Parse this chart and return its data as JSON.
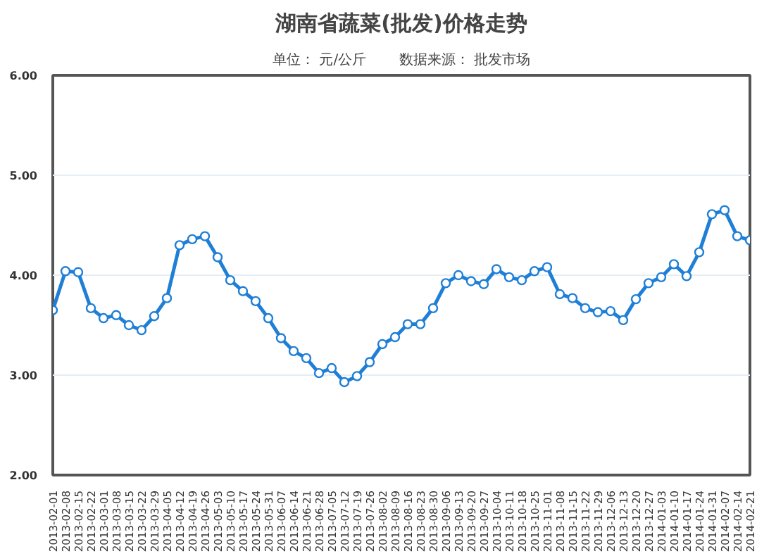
{
  "chart_data": {
    "type": "line",
    "title": "湖南省蔬菜(批发)价格走势",
    "subtitle": "单位： 元/公斤　　 数据来源： 批发市场",
    "categories": [
      "2013-02-01",
      "2013-02-08",
      "2013-02-15",
      "2013-02-22",
      "2013-03-01",
      "2013-03-08",
      "2013-03-15",
      "2013-03-22",
      "2013-03-29",
      "2013-04-05",
      "2013-04-12",
      "2013-04-19",
      "2013-04-26",
      "2013-05-03",
      "2013-05-10",
      "2013-05-17",
      "2013-05-24",
      "2013-05-31",
      "2013-06-07",
      "2013-06-14",
      "2013-06-21",
      "2013-06-28",
      "2013-07-05",
      "2013-07-12",
      "2013-07-19",
      "2013-07-26",
      "2013-08-02",
      "2013-08-09",
      "2013-08-16",
      "2013-08-23",
      "2013-08-30",
      "2013-09-06",
      "2013-09-13",
      "2013-09-20",
      "2013-09-27",
      "2013-10-04",
      "2013-10-11",
      "2013-10-18",
      "2013-10-25",
      "2013-11-01",
      "2013-11-08",
      "2013-11-15",
      "2013-11-22",
      "2013-11-29",
      "2013-12-06",
      "2013-12-13",
      "2013-12-20",
      "2013-12-27",
      "2014-01-03",
      "2014-01-10",
      "2014-01-17",
      "2014-01-24",
      "2014-01-31",
      "2014-02-07",
      "2014-02-14",
      "2014-02-21"
    ],
    "series": [
      {
        "color": "#1f7fd6",
        "values": [
          3.65,
          4.04,
          4.03,
          3.67,
          3.57,
          3.6,
          3.5,
          3.45,
          3.59,
          3.77,
          4.3,
          4.36,
          4.39,
          4.18,
          3.95,
          3.84,
          3.74,
          3.57,
          3.37,
          3.24,
          3.17,
          3.02,
          3.07,
          2.93,
          2.99,
          3.13,
          3.31,
          3.38,
          3.51,
          3.51,
          3.67,
          3.92,
          4.0,
          3.94,
          3.91,
          4.06,
          3.98,
          3.95,
          4.04,
          4.08,
          3.81,
          3.77,
          3.67,
          3.63,
          3.64,
          3.55,
          3.76,
          3.92,
          3.98,
          4.11,
          3.99,
          4.23,
          4.61,
          4.65,
          4.39,
          4.35
        ]
      }
    ],
    "ylim": [
      2,
      6
    ],
    "yticks": [
      {
        "value": 2,
        "label": "2.00"
      },
      {
        "value": 3,
        "label": "3.00"
      },
      {
        "value": 4,
        "label": "4.00"
      },
      {
        "value": 5,
        "label": "5.00"
      },
      {
        "value": 6,
        "label": "6.00"
      }
    ],
    "grid": "y",
    "marker": "circle",
    "line_style": "solid"
  }
}
